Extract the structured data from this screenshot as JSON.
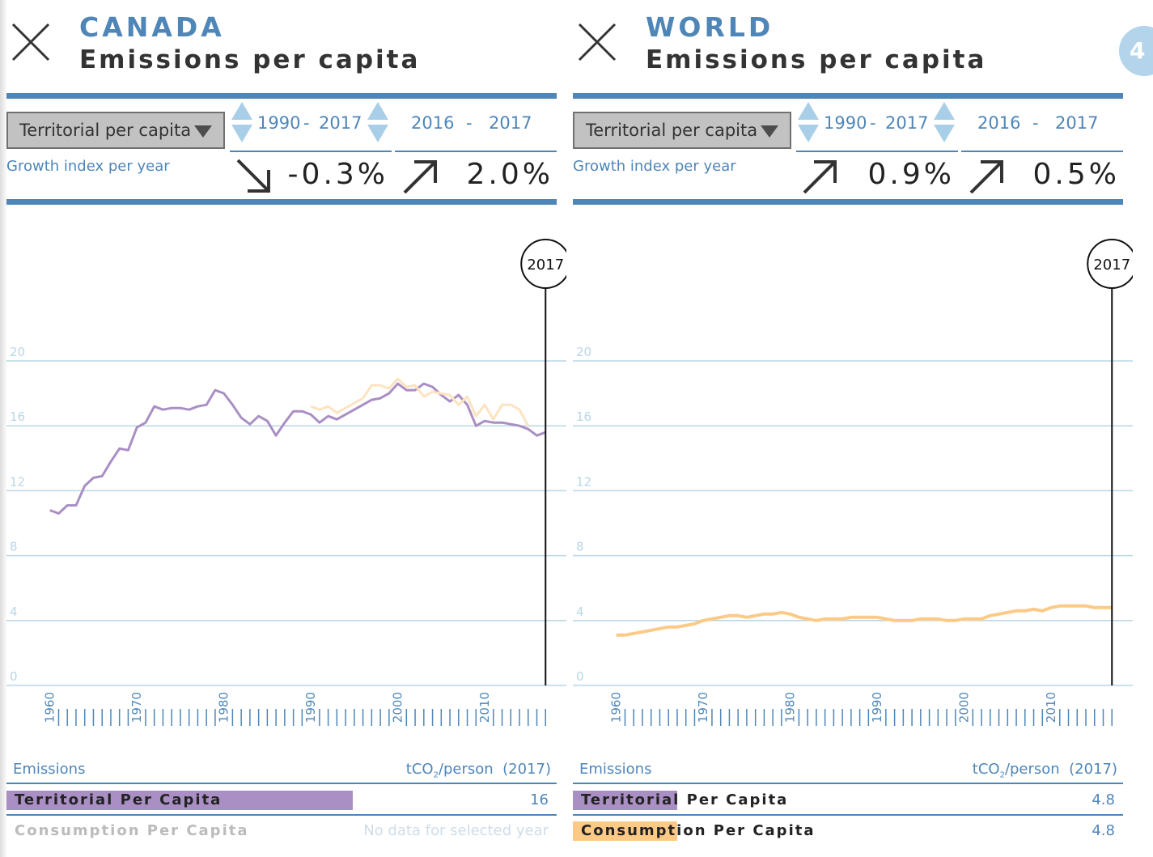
{
  "page_number": "4",
  "colors": {
    "accent": "#4f86b8",
    "territorial": "#a98fc4",
    "consumption": "#fcca86",
    "consumption_faint": "#fde3c0",
    "grid": "#b9d6e6",
    "spinner": "#a9cfe8"
  },
  "panels": [
    {
      "country": "CANADA",
      "subtitle": "Emissions per capita",
      "select_value": "Territorial per capita",
      "range1": {
        "start": "1990",
        "end": "2017"
      },
      "range2": {
        "start": "2016",
        "end": "2017"
      },
      "growth_label": "Growth index per year",
      "growth1": {
        "value": "-0.3%",
        "direction": "down"
      },
      "growth2": {
        "value": "2.0%",
        "direction": "up"
      },
      "legend": {
        "header_left": "Emissions",
        "header_right_prefix": "tCO",
        "header_right_sub": "2",
        "header_right_suffix": "/person  (2017)",
        "rows": [
          {
            "name": "Territorial Per Capita",
            "value": "16",
            "bar_fraction": 0.63,
            "bar_color": "#a98fc4"
          },
          {
            "name": "Consumption Per Capita",
            "value": "No data for selected year",
            "bar_fraction": 0,
            "bar_color": "#fcca86",
            "nodata": true
          }
        ]
      },
      "chart_data": {
        "type": "line",
        "selected_year": "2017",
        "xlim": [
          1955,
          2018
        ],
        "ylim": [
          0,
          20.5
        ],
        "y_ticks": [
          "0",
          "4",
          "8",
          "12",
          "16",
          "20"
        ],
        "x_labels": [
          "1960",
          "1970",
          "1980",
          "1990",
          "2000",
          "2010"
        ],
        "grid": true,
        "series": [
          {
            "key": "territorial",
            "color": "#a98fc4",
            "width": 3,
            "x": [
              1960,
              1961,
              1962,
              1963,
              1964,
              1965,
              1966,
              1967,
              1968,
              1969,
              1970,
              1971,
              1972,
              1973,
              1974,
              1975,
              1976,
              1977,
              1978,
              1979,
              1980,
              1981,
              1982,
              1983,
              1984,
              1985,
              1986,
              1987,
              1988,
              1989,
              1990,
              1991,
              1992,
              1993,
              1994,
              1995,
              1996,
              1997,
              1998,
              1999,
              2000,
              2001,
              2002,
              2003,
              2004,
              2005,
              2006,
              2007,
              2008,
              2009,
              2010,
              2011,
              2012,
              2013,
              2014,
              2015,
              2016,
              2017
            ],
            "y": [
              10.8,
              10.6,
              11.1,
              11.1,
              12.3,
              12.8,
              12.9,
              13.8,
              14.6,
              14.5,
              15.9,
              16.2,
              17.2,
              17.0,
              17.1,
              17.1,
              17.0,
              17.2,
              17.3,
              18.2,
              18.0,
              17.3,
              16.5,
              16.1,
              16.6,
              16.3,
              15.4,
              16.2,
              16.9,
              16.9,
              16.7,
              16.2,
              16.6,
              16.4,
              16.7,
              17.0,
              17.3,
              17.6,
              17.7,
              18.0,
              18.6,
              18.2,
              18.2,
              18.6,
              18.4,
              17.9,
              17.5,
              17.9,
              17.3,
              16.0,
              16.3,
              16.2,
              16.2,
              16.1,
              16.0,
              15.8,
              15.4,
              15.6
            ]
          },
          {
            "key": "consumption",
            "color": "#fde3c0",
            "width": 3,
            "x": [
              1990,
              1991,
              1992,
              1993,
              1994,
              1995,
              1996,
              1997,
              1998,
              1999,
              2000,
              2001,
              2002,
              2003,
              2004,
              2005,
              2006,
              2007,
              2008,
              2009,
              2010,
              2011,
              2012,
              2013,
              2014,
              2015
            ],
            "y": [
              17.2,
              17.0,
              17.2,
              16.8,
              17.1,
              17.4,
              17.7,
              18.5,
              18.5,
              18.3,
              18.9,
              18.4,
              18.5,
              17.8,
              18.1,
              18.0,
              17.9,
              17.3,
              17.8,
              16.6,
              17.3,
              16.4,
              17.3,
              17.3,
              17.0,
              16.0
            ]
          }
        ]
      }
    },
    {
      "country": "WORLD",
      "subtitle": "Emissions per capita",
      "select_value": "Territorial per capita",
      "range1": {
        "start": "1990",
        "end": "2017"
      },
      "range2": {
        "start": "2016",
        "end": "2017"
      },
      "growth_label": "Growth index per year",
      "growth1": {
        "value": "0.9%",
        "direction": "up"
      },
      "growth2": {
        "value": "0.5%",
        "direction": "up"
      },
      "legend": {
        "header_left": "Emissions",
        "header_right_prefix": "tCO",
        "header_right_sub": "2",
        "header_right_suffix": "/person  (2017)",
        "rows": [
          {
            "name": "Territorial Per Capita",
            "value": "4.8",
            "bar_fraction": 0.19,
            "bar_color": "#a98fc4"
          },
          {
            "name": "Consumption Per Capita",
            "value": "4.8",
            "bar_fraction": 0.19,
            "bar_color": "#fcca86"
          }
        ]
      },
      "chart_data": {
        "type": "line",
        "selected_year": "2017",
        "xlim": [
          1955,
          2018
        ],
        "ylim": [
          0,
          20.5
        ],
        "y_ticks": [
          "0",
          "4",
          "8",
          "12",
          "16",
          "20"
        ],
        "x_labels": [
          "1960",
          "1970",
          "1980",
          "1990",
          "2000",
          "2010"
        ],
        "grid": true,
        "series": [
          {
            "key": "territorial",
            "color": "#fcca86",
            "width": 4,
            "x": [
              1960,
              1961,
              1962,
              1963,
              1964,
              1965,
              1966,
              1967,
              1968,
              1969,
              1970,
              1971,
              1972,
              1973,
              1974,
              1975,
              1976,
              1977,
              1978,
              1979,
              1980,
              1981,
              1982,
              1983,
              1984,
              1985,
              1986,
              1987,
              1988,
              1989,
              1990,
              1991,
              1992,
              1993,
              1994,
              1995,
              1996,
              1997,
              1998,
              1999,
              2000,
              2001,
              2002,
              2003,
              2004,
              2005,
              2006,
              2007,
              2008,
              2009,
              2010,
              2011,
              2012,
              2013,
              2014,
              2015,
              2016,
              2017
            ],
            "y": [
              3.1,
              3.1,
              3.2,
              3.3,
              3.4,
              3.5,
              3.6,
              3.6,
              3.7,
              3.8,
              4.0,
              4.1,
              4.2,
              4.3,
              4.3,
              4.2,
              4.3,
              4.4,
              4.4,
              4.5,
              4.4,
              4.2,
              4.1,
              4.0,
              4.1,
              4.1,
              4.1,
              4.2,
              4.2,
              4.2,
              4.2,
              4.1,
              4.0,
              4.0,
              4.0,
              4.1,
              4.1,
              4.1,
              4.0,
              4.0,
              4.1,
              4.1,
              4.1,
              4.3,
              4.4,
              4.5,
              4.6,
              4.6,
              4.7,
              4.6,
              4.8,
              4.9,
              4.9,
              4.9,
              4.9,
              4.8,
              4.8,
              4.8
            ]
          }
        ]
      }
    }
  ]
}
